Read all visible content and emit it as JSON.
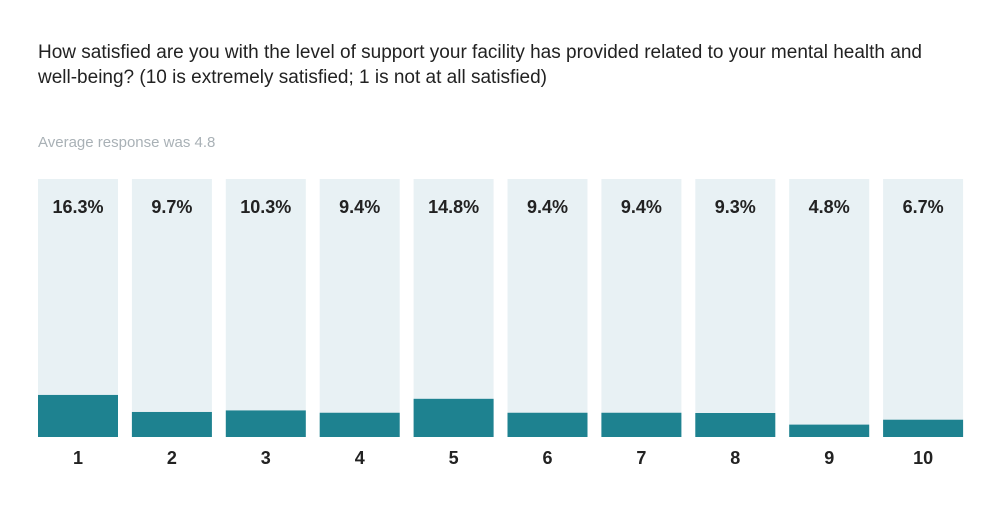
{
  "title": "How satisfied are you with the level of support your facility has provided related to your mental health and well-being? (10 is extremely satisfied; 1 is not at all satisfied)",
  "subtitle": "Average response was 4.8",
  "colors": {
    "track": "#e8f1f4",
    "bar": "#1e8290",
    "text": "#222222"
  },
  "chart_data": {
    "type": "bar",
    "categories": [
      "1",
      "2",
      "3",
      "4",
      "5",
      "6",
      "7",
      "8",
      "9",
      "10"
    ],
    "values": [
      16.3,
      9.7,
      10.3,
      9.4,
      14.8,
      9.4,
      9.4,
      9.3,
      4.8,
      6.7
    ],
    "value_labels": [
      "16.3%",
      "9.7%",
      "10.3%",
      "9.4%",
      "14.8%",
      "9.4%",
      "9.4%",
      "9.3%",
      "4.8%",
      "6.7%"
    ],
    "ylim": [
      0,
      100
    ],
    "grid": false
  }
}
